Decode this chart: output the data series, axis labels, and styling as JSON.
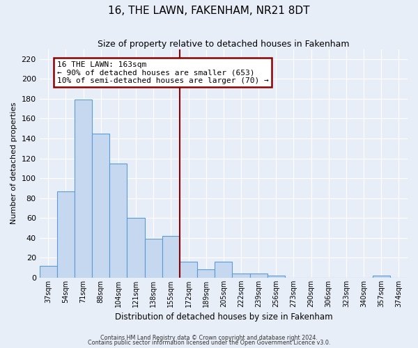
{
  "title": "16, THE LAWN, FAKENHAM, NR21 8DT",
  "subtitle": "Size of property relative to detached houses in Fakenham",
  "xlabel": "Distribution of detached houses by size in Fakenham",
  "ylabel": "Number of detached properties",
  "bar_labels": [
    "37sqm",
    "54sqm",
    "71sqm",
    "88sqm",
    "104sqm",
    "121sqm",
    "138sqm",
    "155sqm",
    "172sqm",
    "189sqm",
    "205sqm",
    "222sqm",
    "239sqm",
    "256sqm",
    "273sqm",
    "290sqm",
    "306sqm",
    "323sqm",
    "340sqm",
    "357sqm",
    "374sqm"
  ],
  "bar_values": [
    12,
    87,
    179,
    145,
    115,
    60,
    39,
    42,
    16,
    8,
    16,
    4,
    4,
    2,
    0,
    0,
    0,
    0,
    0,
    2,
    0
  ],
  "bar_color": "#c5d8f0",
  "bar_edge_color": "#5b9bd5",
  "vline_x_index": 8,
  "vline_color": "#8b0000",
  "annotation_title": "16 THE LAWN: 163sqm",
  "annotation_line1": "← 90% of detached houses are smaller (653)",
  "annotation_line2": "10% of semi-detached houses are larger (70) →",
  "annotation_box_edgecolor": "#8b0000",
  "ylim_max": 230,
  "yticks": [
    0,
    20,
    40,
    60,
    80,
    100,
    120,
    140,
    160,
    180,
    200,
    220
  ],
  "background_color": "#e8eef8",
  "grid_color": "#ffffff",
  "footnote1": "Contains HM Land Registry data © Crown copyright and database right 2024.",
  "footnote2": "Contains public sector information licensed under the Open Government Licence v3.0."
}
